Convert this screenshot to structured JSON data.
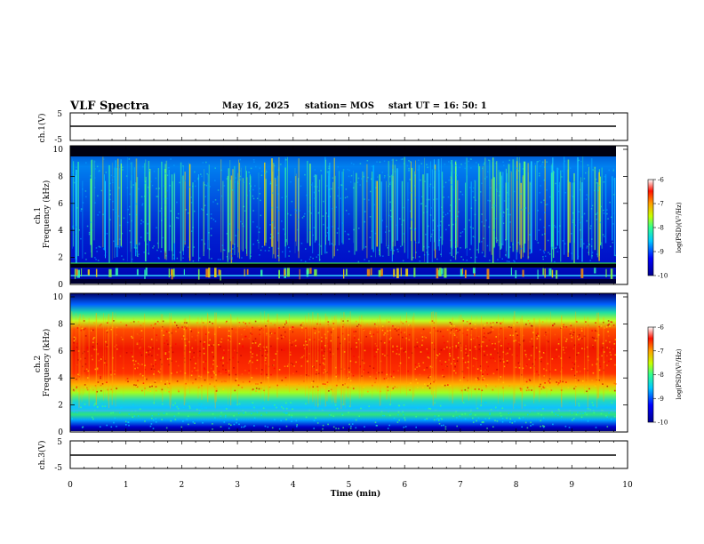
{
  "header": {
    "title": "VLF Spectra",
    "date": "May 16, 2025",
    "station": "station= MOS",
    "start": "start UT =   16: 50: 1"
  },
  "chart_data": [
    {
      "type": "line",
      "panel": "ch1-voltage",
      "ylabel": "ch.1(V)",
      "yticks": [
        "5",
        "-5"
      ],
      "ylim": [
        -5,
        5
      ],
      "x": [
        0,
        9.83
      ],
      "values": [
        0,
        0
      ]
    },
    {
      "type": "heatmap",
      "panel": "ch1-spectrogram",
      "ylabel": "ch.1\nFrequency (kHz)",
      "yticks": [
        "0",
        "2",
        "4",
        "6",
        "8",
        "10"
      ],
      "ylim": [
        0,
        10
      ],
      "xlim": [
        0,
        9.83
      ],
      "description_values": {
        "background_log_psd": -9.3,
        "black_bands_khz": [
          [
            1.2,
            1.7
          ],
          [
            9.3,
            10
          ]
        ],
        "sferic_streaks": "many vertical impulsive lines across 2-9 kHz"
      },
      "colorbar": {
        "label": "log(PSD)(V²/Hz)",
        "ticks": [
          "-6",
          "-7",
          "-8",
          "-9",
          "-10"
        ],
        "range": [
          -10,
          -6
        ]
      }
    },
    {
      "type": "heatmap",
      "panel": "ch2-spectrogram",
      "ylabel": "ch.2\nFrequency (kHz)",
      "yticks": [
        "0",
        "2",
        "4",
        "6",
        "8",
        "10"
      ],
      "ylim": [
        0,
        10
      ],
      "xlim": [
        0,
        9.83
      ],
      "description_values": {
        "peak_band_khz": [
          3.5,
          8
        ],
        "peak_log_psd": -6.8
      },
      "colorbar": {
        "label": "log(PSD)(V²/Hz)",
        "ticks": [
          "-6",
          "-7",
          "-8",
          "-9",
          "-10"
        ],
        "range": [
          -10,
          -6
        ]
      }
    },
    {
      "type": "line",
      "panel": "ch3-voltage",
      "ylabel": "ch.3(V)",
      "yticks": [
        "5",
        "-5"
      ],
      "ylim": [
        -5,
        5
      ],
      "x": [
        0,
        9.83
      ],
      "values": [
        0,
        0
      ]
    }
  ],
  "xaxis": {
    "label": "Time (min)",
    "ticks": [
      "0",
      "1",
      "2",
      "3",
      "4",
      "5",
      "6",
      "7",
      "8",
      "9",
      "10"
    ],
    "xlim": [
      0,
      10
    ]
  },
  "colors": {
    "axis": "#000000",
    "background": "#ffffff"
  }
}
